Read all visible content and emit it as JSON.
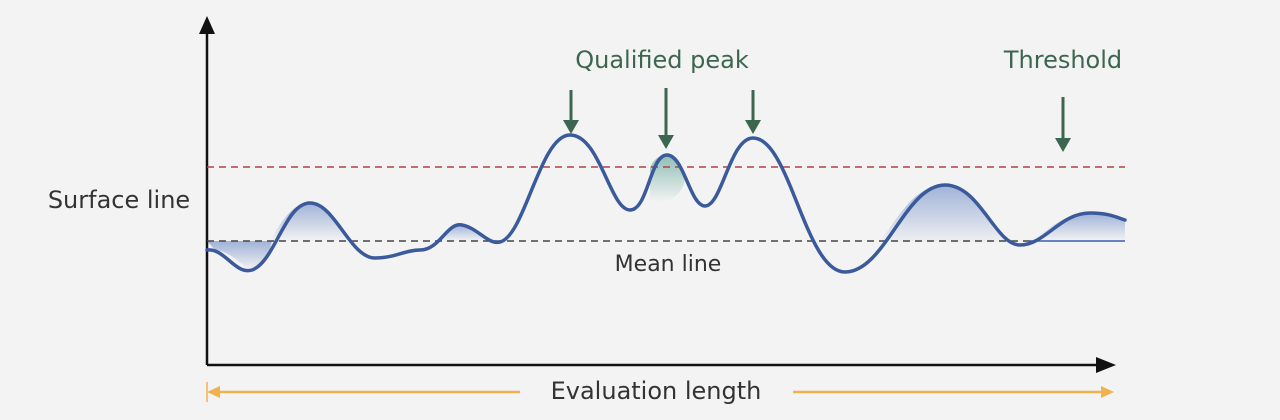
{
  "labels": {
    "y_axis": "Surface line",
    "peak_annotation": "Qualified peak",
    "threshold_annotation": "Threshold",
    "mean_line": "Mean line",
    "x_axis": "Evaluation length"
  }
}
